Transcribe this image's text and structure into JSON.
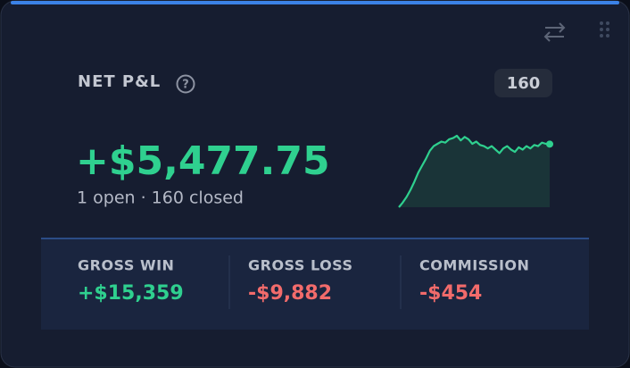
{
  "header": {
    "title": "NET P&L",
    "badge": "160"
  },
  "net": {
    "value": "+$5,477.75",
    "color": "#2fd08f",
    "subtitle": "1 open · 160 closed"
  },
  "sparkline": {
    "color": "#2fd08f",
    "fill": "#1a3438",
    "values": [
      0,
      400,
      900,
      1500,
      2200,
      3000,
      3600,
      4200,
      4900,
      5300,
      5500,
      5700,
      5600,
      5900,
      6000,
      6200,
      5800,
      6100,
      5900,
      5500,
      5700,
      5400,
      5300,
      5100,
      5300,
      5000,
      4700,
      5100,
      5300,
      5000,
      4800,
      5200,
      5000,
      5300,
      5100,
      5400,
      5300,
      5600,
      5500,
      5478
    ]
  },
  "stats": [
    {
      "label": "GROSS WIN",
      "value": "+$15,359",
      "color": "#2fd08f"
    },
    {
      "label": "GROSS LOSS",
      "value": "-$9,882",
      "color": "#f26b6b"
    },
    {
      "label": "COMMISSION",
      "value": "-$454",
      "color": "#f26b6b"
    }
  ]
}
